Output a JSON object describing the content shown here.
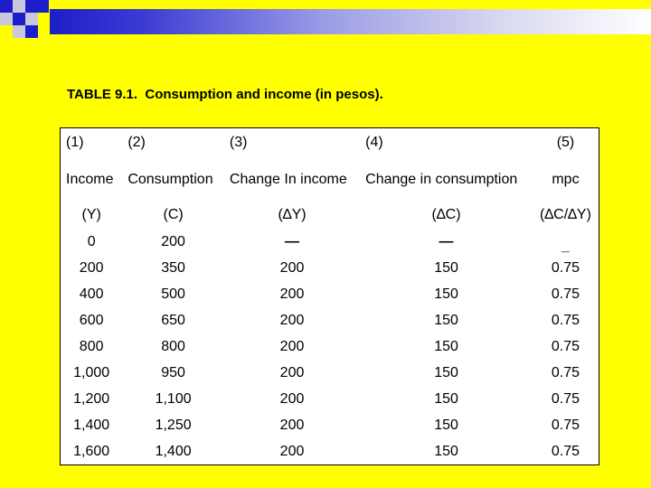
{
  "title": "TABLE 9.1.  Consumption and income (in pesos).",
  "colors": {
    "background": "#ffff00",
    "accent": "#1e1ec8",
    "table_bg": "#ffffff"
  },
  "header": {
    "numbers": [
      "(1)",
      "(2)",
      "(3)",
      "(4)",
      "(5)"
    ],
    "names": [
      "Income",
      "Consumption",
      "Change In income",
      "Change in consumption",
      "mpc"
    ],
    "symbols": [
      "(Y)",
      "(C)",
      "(∆Y)",
      "(∆C)",
      "(∆C/∆Y)"
    ]
  },
  "rows": [
    {
      "y": "0",
      "c": "200",
      "dy": "—",
      "dc": "—",
      "mpc": "_"
    },
    {
      "y": "200",
      "c": "350",
      "dy": "200",
      "dc": "150",
      "mpc": "0.75"
    },
    {
      "y": "400",
      "c": "500",
      "dy": "200",
      "dc": "150",
      "mpc": "0.75"
    },
    {
      "y": "600",
      "c": "650",
      "dy": "200",
      "dc": "150",
      "mpc": "0.75"
    },
    {
      "y": "800",
      "c": "800",
      "dy": "200",
      "dc": "150",
      "mpc": "0.75"
    },
    {
      "y": "1,000",
      "c": "950",
      "dy": "200",
      "dc": "150",
      "mpc": "0.75"
    },
    {
      "y": "1,200",
      "c": "1,100",
      "dy": "200",
      "dc": "150",
      "mpc": "0.75"
    },
    {
      "y": "1,400",
      "c": "1,250",
      "dy": "200",
      "dc": "150",
      "mpc": "0.75"
    },
    {
      "y": "1,600",
      "c": "1,400",
      "dy": "200",
      "dc": "150",
      "mpc": "0.75"
    }
  ]
}
